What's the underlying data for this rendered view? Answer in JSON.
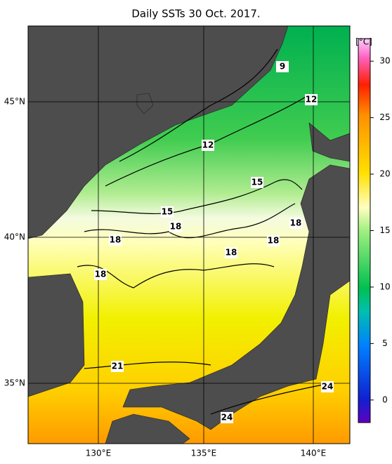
{
  "title": "Daily SSTs 30 Oct. 2017.",
  "longitude_labels": [
    "130°E",
    "135°E",
    "140°E"
  ],
  "latitude_labels": [
    "45°N",
    "40°N",
    "35°N"
  ],
  "colorbar": {
    "unit": "[°C]",
    "range": [
      -2,
      32
    ],
    "ticks": [
      0,
      5,
      10,
      15,
      20,
      25,
      30
    ]
  },
  "contour_labels": [
    9,
    12,
    12,
    15,
    15,
    18,
    18,
    18,
    18,
    18,
    18,
    21,
    24,
    24
  ]
}
